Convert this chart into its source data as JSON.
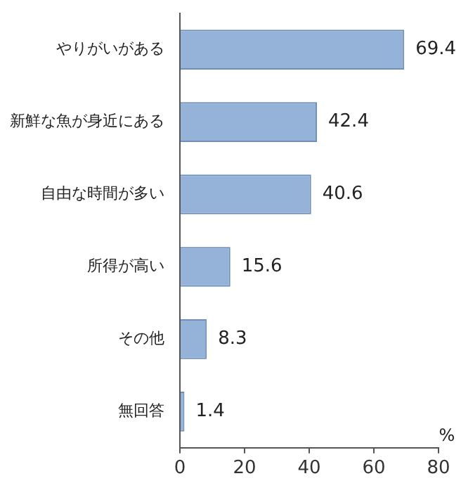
{
  "chart_data": {
    "type": "bar",
    "orientation": "horizontal",
    "categories": [
      "やりがいがある",
      "新鮮な魚が身近にある",
      "自由な時間が多い",
      "所得が高い",
      "その他",
      "無回答"
    ],
    "values": [
      69.4,
      42.4,
      40.6,
      15.6,
      8.3,
      1.4
    ],
    "color": "#95b3d9",
    "xlim": [
      0,
      80
    ],
    "xticks": [
      0,
      20,
      40,
      60,
      80
    ],
    "xlabel": "%",
    "grid": false,
    "legend": false,
    "data_labels": true
  }
}
